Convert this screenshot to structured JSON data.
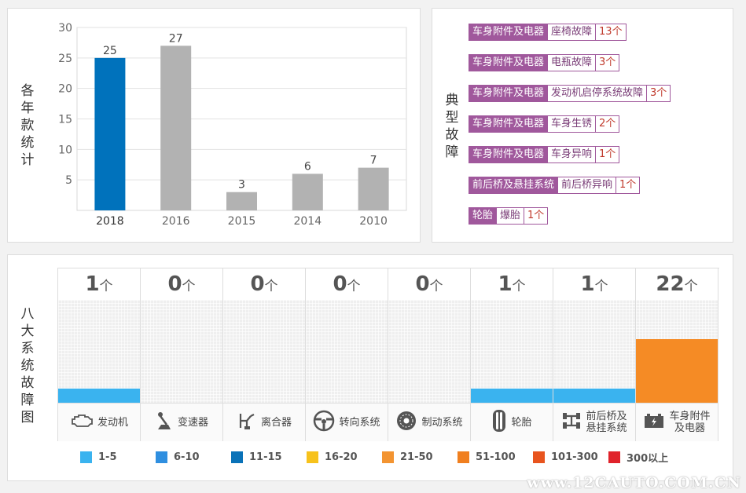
{
  "year_panel": {
    "vertical_label": "各年款统计"
  },
  "chart_data": {
    "type": "bar",
    "categories": [
      "2018",
      "2016",
      "2015",
      "2014",
      "2010"
    ],
    "values": [
      25,
      27,
      3,
      6,
      7
    ],
    "highlight_color": "#0072bc",
    "default_color": "#b2b2b2",
    "highlight_index": 0,
    "yticks": [
      5,
      10,
      15,
      20,
      25,
      30
    ],
    "ylim": [
      0,
      30
    ],
    "grid": true,
    "title": "",
    "xlabel": "",
    "ylabel": "各年款统计"
  },
  "typical_panel": {
    "vertical_label": "典型故障",
    "faults": [
      {
        "category": "车身附件及电器",
        "name": "座椅故障",
        "count": "13个"
      },
      {
        "category": "车身附件及电器",
        "name": "电瓶故障",
        "count": "3个"
      },
      {
        "category": "车身附件及电器",
        "name": "发动机启停系统故障",
        "count": "3个"
      },
      {
        "category": "车身附件及电器",
        "name": "车身生锈",
        "count": "2个"
      },
      {
        "category": "车身附件及电器",
        "name": "车身异响",
        "count": "1个"
      },
      {
        "category": "前后桥及悬挂系统",
        "name": "前后桥异响",
        "count": "1个"
      },
      {
        "category": "轮胎",
        "name": "爆胎",
        "count": "1个"
      }
    ]
  },
  "systems_panel": {
    "vertical_label": "八大系统故障图",
    "unit": "个",
    "systems": [
      {
        "name": "发动机",
        "count": "1",
        "level": 0.14,
        "color": "#3ab3ef",
        "icon": "engine-icon"
      },
      {
        "name": "变速器",
        "count": "0",
        "level": 0,
        "color": "#3ab3ef",
        "icon": "gear-shift-icon"
      },
      {
        "name": "离合器",
        "count": "0",
        "level": 0,
        "color": "#3ab3ef",
        "icon": "clutch-icon"
      },
      {
        "name": "转向系统",
        "count": "0",
        "level": 0,
        "color": "#3ab3ef",
        "icon": "steering-wheel-icon"
      },
      {
        "name": "制动系统",
        "count": "0",
        "level": 0,
        "color": "#3ab3ef",
        "icon": "brake-disc-icon"
      },
      {
        "name": "轮胎",
        "count": "1",
        "level": 0.14,
        "color": "#3ab3ef",
        "icon": "tire-icon"
      },
      {
        "name": "前后桥及悬挂系统",
        "name_line1": "前后桥及",
        "name_line2": "悬挂系统",
        "count": "1",
        "level": 0.14,
        "color": "#3ab3ef",
        "icon": "axle-icon"
      },
      {
        "name": "车身附件及电器",
        "name_line1": "车身附件",
        "name_line2": "及电器",
        "count": "22",
        "level": 0.62,
        "color": "#f58b25",
        "icon": "battery-icon"
      }
    ],
    "legend": [
      {
        "label": "1-5",
        "color": "#3ab3ef"
      },
      {
        "label": "6-10",
        "color": "#2f8fe0"
      },
      {
        "label": "11-15",
        "color": "#0a72b8"
      },
      {
        "label": "16-20",
        "color": "#f7c21c"
      },
      {
        "label": "21-50",
        "color": "#f39431"
      },
      {
        "label": "51-100",
        "color": "#f07f1f"
      },
      {
        "label": "101-300",
        "color": "#e8541e"
      },
      {
        "label": "300以上",
        "color": "#e0232b"
      }
    ]
  },
  "watermark": "www.12CAUTO.COM.CN"
}
